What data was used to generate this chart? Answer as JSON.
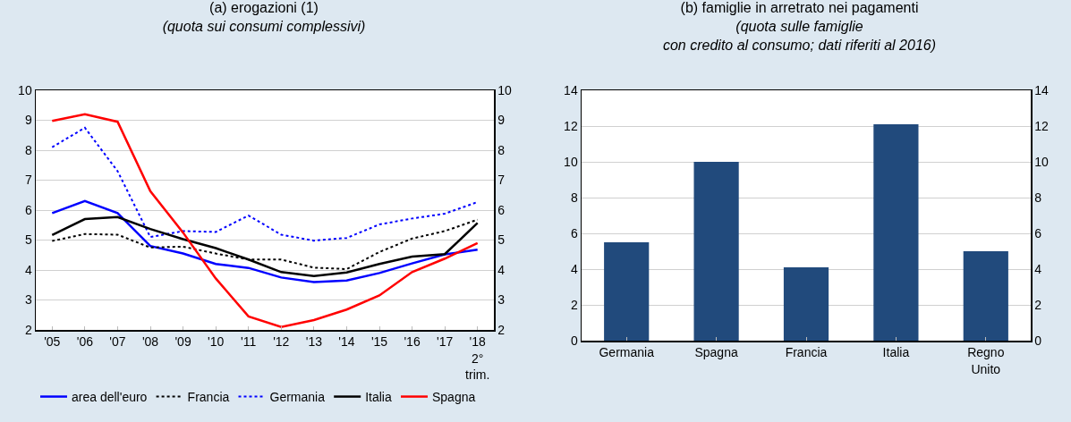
{
  "chart_data": [
    {
      "type": "line",
      "title": "(a) erogazioni (1)",
      "subtitle": "(quota sui consumi complessivi)",
      "categories": [
        "'05",
        "'06",
        "'07",
        "'08",
        "'09",
        "'10",
        "'11",
        "'12",
        "'13",
        "'14",
        "'15",
        "'16",
        "'17",
        "'18\n2°\ntrim."
      ],
      "series": [
        {
          "name": "area dell'euro",
          "color": "#0000ff",
          "line_style": "solid",
          "values": [
            5.9,
            6.3,
            5.9,
            4.8,
            4.55,
            4.2,
            4.07,
            3.75,
            3.6,
            3.65,
            3.9,
            4.22,
            4.52,
            4.68
          ]
        },
        {
          "name": "Francia",
          "color": "#000000",
          "line_style": "dotted",
          "values": [
            4.97,
            5.2,
            5.18,
            4.75,
            4.78,
            4.55,
            4.35,
            4.35,
            4.08,
            4.03,
            4.6,
            5.05,
            5.3,
            5.68
          ]
        },
        {
          "name": "Germania",
          "color": "#0000ff",
          "line_style": "dotted",
          "values": [
            8.1,
            8.75,
            7.3,
            5.1,
            5.3,
            5.27,
            5.82,
            5.18,
            4.98,
            5.07,
            5.52,
            5.72,
            5.88,
            6.27
          ]
        },
        {
          "name": "Italia",
          "color": "#000000",
          "line_style": "solid",
          "values": [
            5.17,
            5.7,
            5.77,
            5.37,
            5.03,
            4.73,
            4.35,
            3.93,
            3.8,
            3.92,
            4.2,
            4.45,
            4.53,
            5.57
          ]
        },
        {
          "name": "Spagna",
          "color": "#ff0000",
          "line_style": "solid",
          "values": [
            8.98,
            9.2,
            8.95,
            6.63,
            5.25,
            3.72,
            2.45,
            2.1,
            2.33,
            2.68,
            3.15,
            3.93,
            4.38,
            4.9
          ]
        }
      ],
      "ylim": [
        2,
        10
      ],
      "yticks": [
        2,
        3,
        4,
        5,
        6,
        7,
        8,
        9,
        10
      ],
      "y2lim": [
        2,
        10
      ],
      "y2ticks": [
        2,
        3,
        4,
        5,
        6,
        7,
        8,
        9,
        10
      ],
      "grid": "y",
      "legend": "bottom",
      "marker": "none"
    },
    {
      "type": "bar",
      "title": "(b) famiglie in arretrato nei pagamenti",
      "subtitle": "(quota sulle famiglie\ncon credito al consumo; dati riferiti al 2016)",
      "categories": [
        "Germania",
        "Spagna",
        "Francia",
        "Italia",
        "Regno\nUnito"
      ],
      "values": [
        5.5,
        10,
        4.1,
        12.1,
        5.0
      ],
      "color": "#214a7c",
      "ylim": [
        0,
        14
      ],
      "yticks": [
        0,
        2,
        4,
        6,
        8,
        10,
        12,
        14
      ],
      "y2lim": [
        0,
        14
      ],
      "y2ticks": [
        0,
        2,
        4,
        6,
        8,
        10,
        12,
        14
      ],
      "grid": "y",
      "legend": false
    }
  ]
}
